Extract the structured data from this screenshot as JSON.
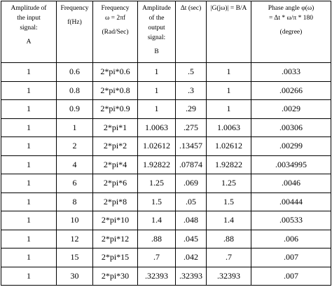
{
  "header": [
    [
      "Amplitude of",
      "the input",
      "signal:",
      "A"
    ],
    [
      "Frequency",
      "f(Hz)"
    ],
    [
      "Frequency",
      "ω = 2πf",
      "(Rad/Sec)"
    ],
    [
      "Amplitude",
      "of the",
      "output",
      "signal:",
      "B"
    ],
    [
      "Δt (sec)"
    ],
    [
      "|G(jω)| = B/A"
    ],
    [
      "Phase angle φ(ω)",
      "= Δt * ω/π * 180",
      "(degree)"
    ]
  ],
  "rows": [
    [
      "1",
      "0.6",
      "2*pi*0.6",
      "1",
      ".5",
      "1",
      ".0033"
    ],
    [
      "1",
      "0.8",
      "2*pi*0.8",
      "1",
      ".3",
      "1",
      ".00266"
    ],
    [
      "1",
      "0.9",
      "2*pi*0.9",
      "1",
      ".29",
      "1",
      ".0029"
    ],
    [
      "1",
      "1",
      "2*pi*1",
      "1.0063",
      ".275",
      "1.0063",
      ".00306"
    ],
    [
      "1",
      "2",
      "2*pi*2",
      "1.02612",
      ".13457",
      "1.02612",
      ".00299"
    ],
    [
      "1",
      "4",
      "2*pi*4",
      "1.92822",
      ".07874",
      "1.92822",
      ".0034995"
    ],
    [
      "1",
      "6",
      "2*pi*6",
      "1.25",
      ".069",
      "1.25",
      ".0046"
    ],
    [
      "1",
      "8",
      "2*pi*8",
      "1.5",
      ".05",
      "1.5",
      ".00444"
    ],
    [
      "1",
      "10",
      "2*pi*10",
      "1.4",
      ".048",
      "1.4",
      ".00533"
    ],
    [
      "1",
      "12",
      "2*pi*12",
      ".88",
      ".045",
      ".88",
      ".006"
    ],
    [
      "1",
      "15",
      "2*pi*15",
      ".7",
      ".042",
      ".7",
      ".007"
    ],
    [
      "1",
      "30",
      "2*pi*30",
      ".32393",
      ".32393",
      ".32393",
      ".007"
    ]
  ]
}
